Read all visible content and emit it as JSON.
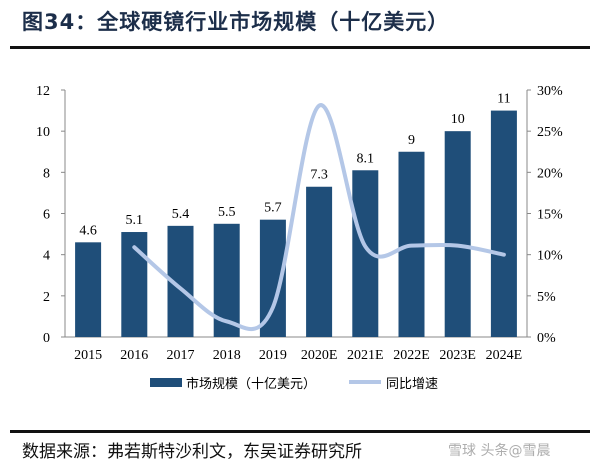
{
  "title": "图34：全球硬镜行业市场规模（十亿美元）",
  "source": "数据来源：弗若斯特沙利文，东吴证券研究所",
  "watermark": "雪球 头条@雪晨",
  "colors": {
    "bar": "#1f4e79",
    "line": "#b4c7e7",
    "title": "#1c2e4a"
  },
  "chart_data": {
    "type": "bar+line",
    "categories": [
      "2015",
      "2016",
      "2017",
      "2018",
      "2019",
      "2020E",
      "2021E",
      "2022E",
      "2023E",
      "2024E"
    ],
    "series": [
      {
        "name": "市场规模（十亿美元）",
        "type": "bar",
        "axis": "left",
        "values": [
          4.6,
          5.1,
          5.4,
          5.5,
          5.7,
          7.3,
          8.1,
          9,
          10,
          11
        ],
        "labels": [
          "4.6",
          "5.1",
          "5.4",
          "5.5",
          "5.7",
          "7.3",
          "8.1",
          "9",
          "10",
          "11"
        ]
      },
      {
        "name": "同比增速",
        "type": "line",
        "axis": "right",
        "values": [
          null,
          10.9,
          5.9,
          1.9,
          3.6,
          28.1,
          11.0,
          11.1,
          11.1,
          10.0
        ]
      }
    ],
    "left_axis": {
      "range": [
        0,
        12
      ],
      "ticks": [
        "0",
        "2",
        "4",
        "6",
        "8",
        "10",
        "12"
      ]
    },
    "right_axis": {
      "range": [
        0,
        30
      ],
      "ticks": [
        "0%",
        "5%",
        "10%",
        "15%",
        "20%",
        "25%",
        "30%"
      ]
    },
    "legend": "bottom",
    "grid": false
  }
}
